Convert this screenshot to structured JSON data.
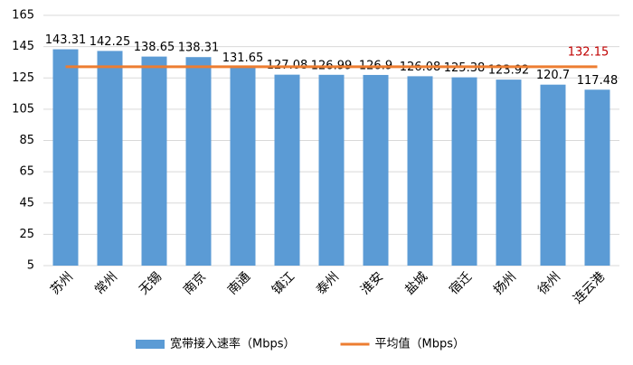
{
  "chart_data": {
    "type": "bar",
    "categories": [
      "苏州",
      "常州",
      "无锡",
      "南京",
      "南通",
      "镇江",
      "泰州",
      "淮安",
      "盐城",
      "宿迁",
      "扬州",
      "徐州",
      "连云港"
    ],
    "series": [
      {
        "name": "宽带接入速率（Mbps）",
        "type": "bar",
        "color": "#5b9bd5",
        "values": [
          143.31,
          142.25,
          138.65,
          138.31,
          131.65,
          127.08,
          126.99,
          126.9,
          126.08,
          125.38,
          123.92,
          120.7,
          117.48
        ]
      },
      {
        "name": "平均值（Mbps）",
        "type": "line",
        "color": "#ed7d31",
        "label_color": "#c00000",
        "values": [
          132.15,
          132.15,
          132.15,
          132.15,
          132.15,
          132.15,
          132.15,
          132.15,
          132.15,
          132.15,
          132.15,
          132.15,
          132.15
        ]
      }
    ],
    "ylim": [
      5,
      165
    ],
    "yticks": [
      5,
      25,
      45,
      65,
      85,
      105,
      125,
      145,
      165
    ],
    "grid": true,
    "legend": "bottom"
  }
}
